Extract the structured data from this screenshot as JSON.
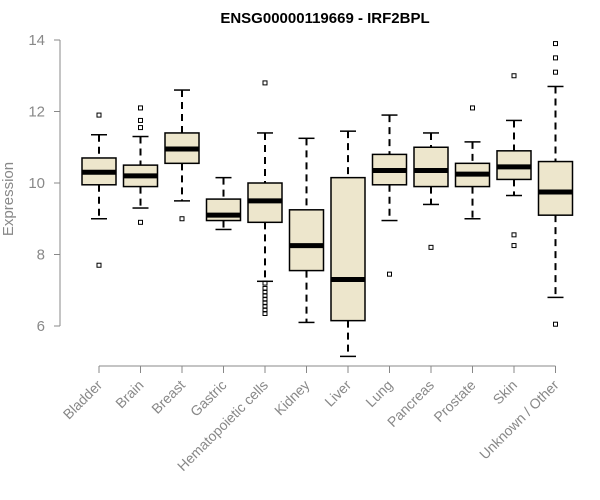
{
  "chart_data": {
    "type": "boxplot",
    "title": "ENSG00000119669 - IRF2BPL",
    "xlabel": "",
    "ylabel": "Expression",
    "ylim": [
      5.0,
      14.0
    ],
    "yticks": [
      6,
      8,
      10,
      12,
      14
    ],
    "box_color": "#ede6cc",
    "categories": [
      "Bladder",
      "Brain",
      "Breast",
      "Gastric",
      "Hematopoietic cells",
      "Kidney",
      "Liver",
      "Lung",
      "Pancreas",
      "Prostate",
      "Skin",
      "Unknown / Other"
    ],
    "boxes": [
      {
        "name": "Bladder",
        "whisker_low": 9.0,
        "q1": 9.95,
        "median": 10.3,
        "q3": 10.7,
        "whisker_high": 11.35,
        "outliers": [
          7.7,
          11.9
        ]
      },
      {
        "name": "Brain",
        "whisker_low": 9.3,
        "q1": 9.9,
        "median": 10.2,
        "q3": 10.5,
        "whisker_high": 11.3,
        "outliers": [
          8.9,
          11.55,
          11.75,
          12.1
        ]
      },
      {
        "name": "Breast",
        "whisker_low": 9.5,
        "q1": 10.55,
        "median": 10.95,
        "q3": 11.4,
        "whisker_high": 12.6,
        "outliers": [
          9.0
        ]
      },
      {
        "name": "Gastric",
        "whisker_low": 8.7,
        "q1": 8.95,
        "median": 9.1,
        "q3": 9.55,
        "whisker_high": 10.15,
        "outliers": []
      },
      {
        "name": "Hematopoietic cells",
        "whisker_low": 7.25,
        "q1": 8.9,
        "median": 9.5,
        "q3": 10.0,
        "whisker_high": 11.4,
        "outliers": [
          12.8,
          7.2,
          7.05,
          6.95,
          6.85,
          6.75,
          6.65,
          6.55,
          6.45,
          6.35
        ]
      },
      {
        "name": "Kidney",
        "whisker_low": 6.1,
        "q1": 7.55,
        "median": 8.25,
        "q3": 9.25,
        "whisker_high": 11.25,
        "outliers": []
      },
      {
        "name": "Liver",
        "whisker_low": 5.15,
        "q1": 6.15,
        "median": 7.3,
        "q3": 10.15,
        "whisker_high": 11.45,
        "outliers": []
      },
      {
        "name": "Lung",
        "whisker_low": 8.95,
        "q1": 9.95,
        "median": 10.35,
        "q3": 10.8,
        "whisker_high": 11.9,
        "outliers": [
          7.45
        ]
      },
      {
        "name": "Pancreas",
        "whisker_low": 9.4,
        "q1": 9.9,
        "median": 10.35,
        "q3": 11.0,
        "whisker_high": 11.4,
        "outliers": [
          8.2
        ]
      },
      {
        "name": "Prostate",
        "whisker_low": 9.0,
        "q1": 9.9,
        "median": 10.25,
        "q3": 10.55,
        "whisker_high": 11.15,
        "outliers": [
          12.1
        ]
      },
      {
        "name": "Skin",
        "whisker_low": 9.65,
        "q1": 10.1,
        "median": 10.45,
        "q3": 10.9,
        "whisker_high": 11.75,
        "outliers": [
          8.55,
          8.25,
          13.0
        ]
      },
      {
        "name": "Unknown / Other",
        "whisker_low": 6.8,
        "q1": 9.1,
        "median": 9.75,
        "q3": 10.6,
        "whisker_high": 12.7,
        "outliers": [
          6.05,
          13.1,
          13.5,
          13.9
        ]
      }
    ]
  }
}
